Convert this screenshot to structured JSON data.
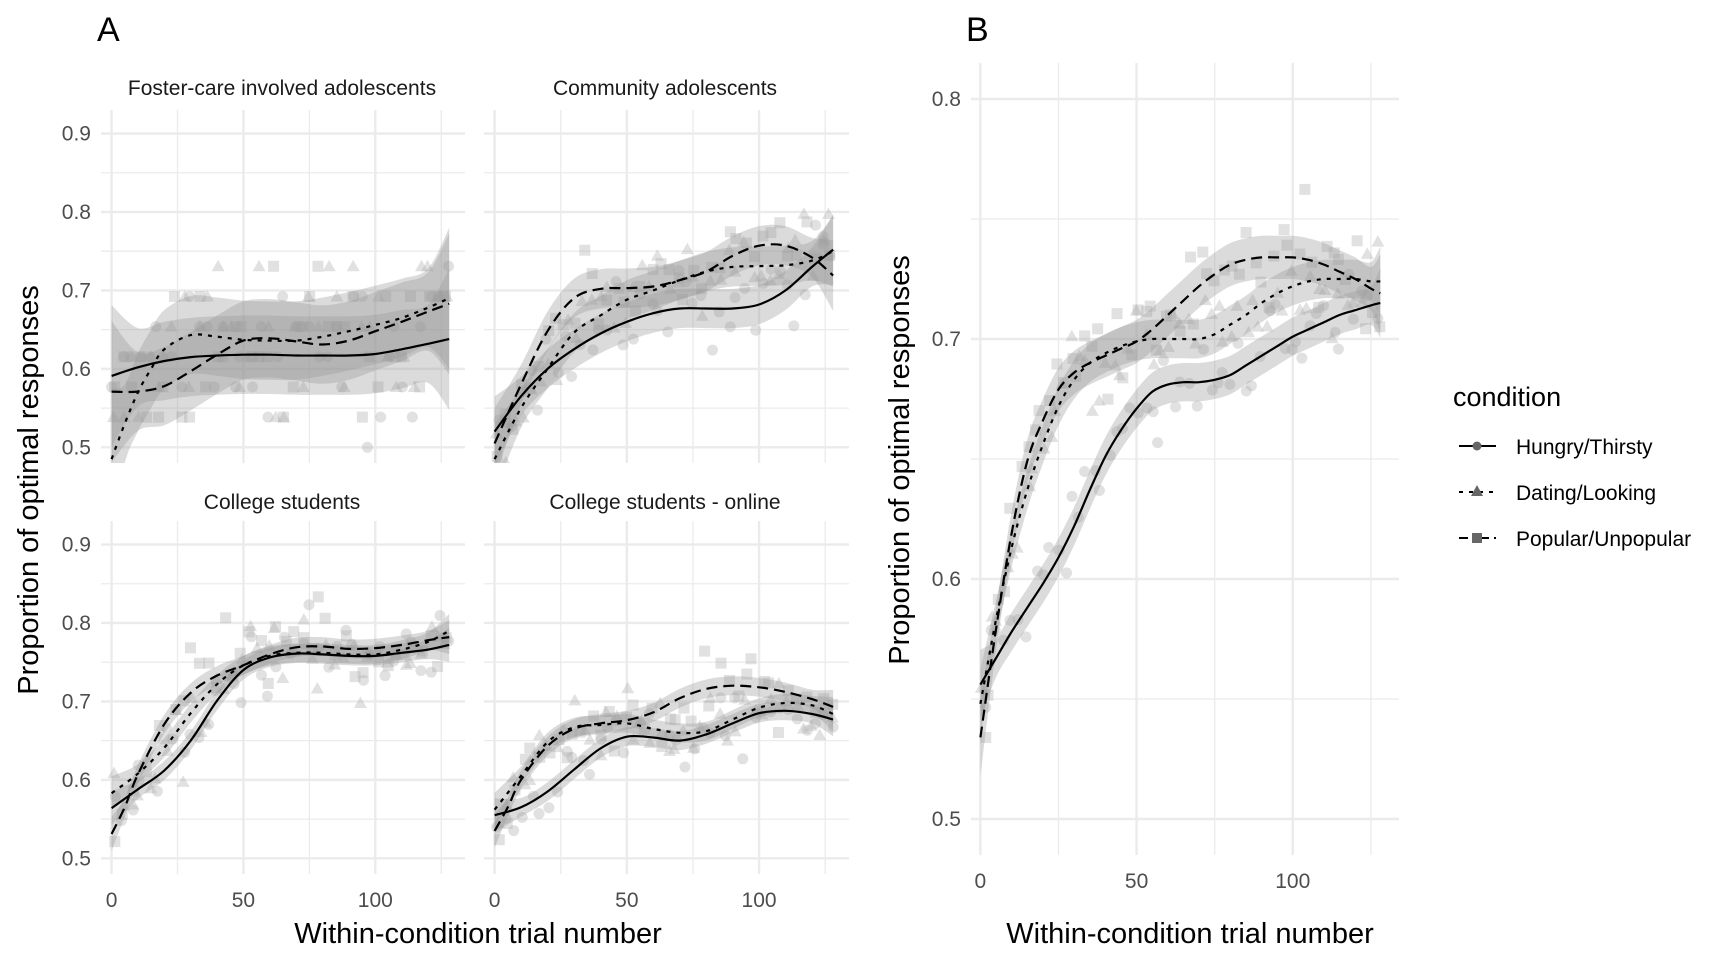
{
  "figure": {
    "tag_a": "A",
    "tag_b": "B",
    "legend": {
      "title": "condition",
      "items": [
        {
          "label": "Hungry/Thirsty",
          "linetype": "solid",
          "shape": "circle"
        },
        {
          "label": "Dating/Looking",
          "linetype": "dotted",
          "shape": "triangle"
        },
        {
          "label": "Popular/Unpopular",
          "linetype": "dashed",
          "shape": "square"
        }
      ]
    },
    "colors": {
      "line": "#000000",
      "ribbon": "#999999",
      "points": "#bdbdbd",
      "grid": "#ebebeb",
      "tick_text": "#4d4d4d"
    }
  },
  "chart_data": [
    {
      "id": "A",
      "type": "scatter",
      "subtype": "faceted scatter with loess smooths",
      "xlabel": "Within-condition trial number",
      "ylabel": "Proportion of optimal responses",
      "xlim": [
        -4,
        134
      ],
      "x_ticks": [
        0,
        50,
        100
      ],
      "x_tick_labels": [
        "0",
        "50",
        "100"
      ],
      "ylim": [
        0.48,
        0.93
      ],
      "y_ticks": [
        0.5,
        0.6,
        0.7,
        0.8,
        0.9
      ],
      "y_tick_labels": [
        "0.5",
        "0.6",
        "0.7",
        "0.8",
        "0.9"
      ],
      "grid": true,
      "facets": [
        {
          "title": "Foster-care involved adolescents",
          "series": [
            {
              "name": "Hungry/Thirsty",
              "x": [
                0,
                10,
                20,
                30,
                40,
                50,
                60,
                70,
                80,
                90,
                100,
                110,
                120,
                128
              ],
              "y": [
                0.591,
                0.602,
                0.61,
                0.615,
                0.617,
                0.618,
                0.618,
                0.617,
                0.617,
                0.617,
                0.619,
                0.625,
                0.632,
                0.638
              ],
              "ci": 0.05
            },
            {
              "name": "Dating/Looking",
              "x": [
                0,
                5,
                10,
                15,
                20,
                30,
                40,
                50,
                60,
                70,
                80,
                90,
                100,
                110,
                120,
                128
              ],
              "y": [
                0.485,
                0.53,
                0.57,
                0.6,
                0.625,
                0.643,
                0.641,
                0.637,
                0.636,
                0.636,
                0.641,
                0.648,
                0.656,
                0.665,
                0.678,
                0.69
              ],
              "ci": 0.05
            },
            {
              "name": "Popular/Unpopular",
              "x": [
                0,
                10,
                20,
                30,
                40,
                50,
                60,
                70,
                80,
                90,
                100,
                110,
                120,
                128
              ],
              "y": [
                0.571,
                0.571,
                0.578,
                0.597,
                0.618,
                0.636,
                0.639,
                0.635,
                0.631,
                0.636,
                0.648,
                0.66,
                0.673,
                0.683
              ],
              "ci": 0.05
            }
          ]
        },
        {
          "title": "Community adolescents",
          "series": [
            {
              "name": "Hungry/Thirsty",
              "x": [
                0,
                10,
                20,
                30,
                40,
                50,
                60,
                70,
                80,
                90,
                100,
                110,
                120,
                128
              ],
              "y": [
                0.52,
                0.565,
                0.6,
                0.625,
                0.645,
                0.66,
                0.671,
                0.677,
                0.677,
                0.677,
                0.682,
                0.7,
                0.73,
                0.752
              ],
              "ci": 0.025
            },
            {
              "name": "Dating/Looking",
              "x": [
                0,
                10,
                20,
                30,
                40,
                50,
                60,
                70,
                80,
                90,
                100,
                110,
                120,
                128
              ],
              "y": [
                0.485,
                0.55,
                0.6,
                0.646,
                0.668,
                0.688,
                0.7,
                0.713,
                0.724,
                0.73,
                0.731,
                0.732,
                0.738,
                0.75
              ],
              "ci": 0.025
            },
            {
              "name": "Popular/Unpopular",
              "x": [
                0,
                10,
                20,
                30,
                40,
                50,
                60,
                70,
                80,
                90,
                100,
                110,
                120,
                128
              ],
              "y": [
                0.505,
                0.58,
                0.648,
                0.69,
                0.702,
                0.703,
                0.705,
                0.713,
                0.724,
                0.744,
                0.757,
                0.757,
                0.742,
                0.719
              ],
              "ci": 0.025
            }
          ]
        },
        {
          "title": "College students",
          "series": [
            {
              "name": "Hungry/Thirsty",
              "x": [
                0,
                10,
                20,
                30,
                40,
                50,
                60,
                70,
                80,
                90,
                100,
                110,
                120,
                128
              ],
              "y": [
                0.564,
                0.588,
                0.612,
                0.65,
                0.701,
                0.74,
                0.756,
                0.761,
                0.76,
                0.758,
                0.758,
                0.762,
                0.766,
                0.772
              ],
              "ci": 0.012
            },
            {
              "name": "Dating/Looking",
              "x": [
                0,
                10,
                20,
                30,
                40,
                50,
                60,
                70,
                80,
                90,
                100,
                110,
                120,
                128
              ],
              "y": [
                0.583,
                0.608,
                0.641,
                0.685,
                0.722,
                0.746,
                0.758,
                0.762,
                0.762,
                0.76,
                0.76,
                0.766,
                0.776,
                0.79
              ],
              "ci": 0.012
            },
            {
              "name": "Popular/Unpopular",
              "x": [
                0,
                5,
                10,
                20,
                30,
                40,
                50,
                60,
                70,
                80,
                90,
                100,
                110,
                120,
                128
              ],
              "y": [
                0.531,
                0.565,
                0.607,
                0.671,
                0.711,
                0.733,
                0.746,
                0.76,
                0.769,
                0.77,
                0.767,
                0.768,
                0.772,
                0.778,
                0.782
              ],
              "ci": 0.012
            }
          ]
        },
        {
          "title": "College students - online",
          "series": [
            {
              "name": "Hungry/Thirsty",
              "x": [
                0,
                10,
                20,
                30,
                40,
                50,
                60,
                70,
                80,
                90,
                100,
                110,
                120,
                128
              ],
              "y": [
                0.555,
                0.565,
                0.585,
                0.613,
                0.64,
                0.655,
                0.654,
                0.65,
                0.658,
                0.672,
                0.685,
                0.688,
                0.684,
                0.677
              ],
              "ci": 0.012
            },
            {
              "name": "Dating/Looking",
              "x": [
                0,
                10,
                20,
                30,
                40,
                50,
                60,
                70,
                80,
                90,
                100,
                110,
                120,
                128
              ],
              "y": [
                0.562,
                0.605,
                0.648,
                0.667,
                0.67,
                0.672,
                0.665,
                0.66,
                0.662,
                0.677,
                0.692,
                0.698,
                0.695,
                0.684
              ],
              "ci": 0.012
            },
            {
              "name": "Popular/Unpopular",
              "x": [
                0,
                5,
                10,
                20,
                30,
                40,
                50,
                60,
                70,
                80,
                90,
                100,
                110,
                120,
                128
              ],
              "y": [
                0.535,
                0.565,
                0.6,
                0.643,
                0.665,
                0.672,
                0.676,
                0.686,
                0.704,
                0.716,
                0.72,
                0.718,
                0.712,
                0.703,
                0.693
              ],
              "ci": 0.012
            }
          ]
        }
      ]
    },
    {
      "id": "B",
      "type": "scatter",
      "subtype": "scatter with loess smooths",
      "xlabel": "Within-condition trial number",
      "ylabel": "Proportion of optimal responses",
      "xlim": [
        -3,
        134
      ],
      "x_ticks": [
        0,
        50,
        100
      ],
      "x_tick_labels": [
        "0",
        "50",
        "100"
      ],
      "ylim": [
        0.485,
        0.815
      ],
      "y_ticks": [
        0.5,
        0.6,
        0.7,
        0.8
      ],
      "y_tick_labels": [
        "0.5",
        "0.6",
        "0.7",
        "0.8"
      ],
      "grid": true,
      "legend_position": "right",
      "series": [
        {
          "name": "Hungry/Thirsty",
          "x": [
            0,
            5,
            10,
            15,
            20,
            25,
            30,
            35,
            40,
            45,
            50,
            55,
            60,
            65,
            70,
            75,
            80,
            85,
            90,
            95,
            100,
            105,
            110,
            115,
            120,
            125,
            128
          ],
          "y": [
            0.556,
            0.567,
            0.578,
            0.588,
            0.598,
            0.609,
            0.622,
            0.637,
            0.651,
            0.662,
            0.671,
            0.678,
            0.681,
            0.682,
            0.682,
            0.683,
            0.685,
            0.689,
            0.693,
            0.697,
            0.701,
            0.704,
            0.707,
            0.71,
            0.712,
            0.714,
            0.715
          ],
          "ci": 0.008
        },
        {
          "name": "Dating/Looking",
          "x": [
            0,
            5,
            10,
            15,
            20,
            25,
            30,
            35,
            40,
            45,
            50,
            55,
            60,
            65,
            70,
            75,
            80,
            85,
            90,
            95,
            100,
            105,
            110,
            115,
            120,
            125,
            128
          ],
          "y": [
            0.548,
            0.583,
            0.613,
            0.637,
            0.656,
            0.672,
            0.683,
            0.69,
            0.694,
            0.697,
            0.699,
            0.7,
            0.7,
            0.7,
            0.7,
            0.702,
            0.706,
            0.71,
            0.715,
            0.719,
            0.722,
            0.724,
            0.725,
            0.725,
            0.725,
            0.724,
            0.724
          ],
          "ci": 0.008
        },
        {
          "name": "Popular/Unpopular",
          "x": [
            0,
            5,
            10,
            15,
            20,
            25,
            30,
            35,
            40,
            45,
            50,
            55,
            60,
            65,
            70,
            75,
            80,
            85,
            90,
            95,
            100,
            105,
            110,
            115,
            120,
            125,
            128
          ],
          "y": [
            0.534,
            0.579,
            0.619,
            0.649,
            0.666,
            0.679,
            0.686,
            0.69,
            0.693,
            0.696,
            0.699,
            0.704,
            0.71,
            0.716,
            0.722,
            0.727,
            0.731,
            0.733,
            0.734,
            0.734,
            0.734,
            0.733,
            0.731,
            0.728,
            0.725,
            0.721,
            0.719
          ],
          "ci": 0.009
        }
      ]
    }
  ]
}
